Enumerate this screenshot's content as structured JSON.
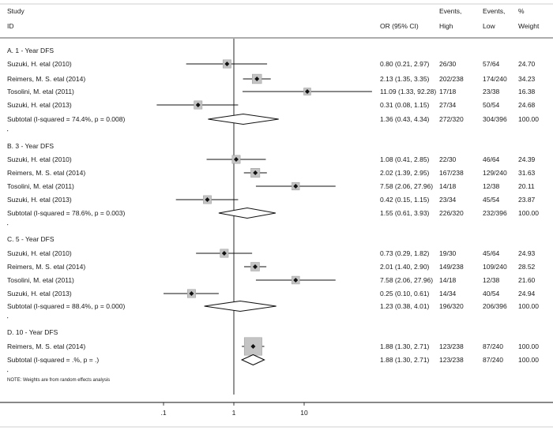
{
  "chart_data": {
    "type": "forest",
    "headers": {
      "study_line1": "Study",
      "study_line2": "ID",
      "or_label": "OR (95% CI)",
      "events_label": "Events,",
      "high_label": "High",
      "low_label": "Low",
      "pct_label": "%",
      "weight_label": "Weight"
    },
    "x_axis": {
      "scale": "log",
      "ticks": [
        0.1,
        1,
        10
      ],
      "tick_labels": [
        ".1",
        "1",
        "10"
      ],
      "range": [
        0.03,
        100
      ]
    },
    "groups": [
      {
        "label": "A. 1 - Year DFS",
        "studies": [
          {
            "name": "Suzuki, H. etal (2010)",
            "or": 0.8,
            "lo": 0.21,
            "hi": 2.97,
            "ci_text": "0.80 (0.21, 2.97)",
            "high": "26/30",
            "low": "57/64",
            "weight": "24.70"
          },
          {
            "name": "Reimers, M. S. etal (2014)",
            "or": 2.13,
            "lo": 1.35,
            "hi": 3.35,
            "ci_text": "2.13 (1.35, 3.35)",
            "high": "202/238",
            "low": "174/240",
            "weight": "34.23"
          },
          {
            "name": "Tosolini, M. etal (2011)",
            "or": 11.09,
            "lo": 1.33,
            "hi": 92.28,
            "ci_text": "11.09 (1.33, 92.28)",
            "high": "17/18",
            "low": "23/38",
            "weight": "16.38"
          },
          {
            "name": "Suzuki, H. etal (2013)",
            "or": 0.31,
            "lo": 0.08,
            "hi": 1.15,
            "ci_text": "0.31 (0.08, 1.15)",
            "high": "27/34",
            "low": "50/54",
            "weight": "24.68"
          }
        ],
        "subtotal": {
          "label": "Subtotal  (I-squared = 74.4%, p = 0.008)",
          "or": 1.36,
          "lo": 0.43,
          "hi": 4.34,
          "ci_text": "1.36 (0.43, 4.34)",
          "high": "272/320",
          "low": "304/396",
          "weight": "100.00"
        }
      },
      {
        "label": "B. 3 - Year DFS",
        "studies": [
          {
            "name": "Suzuki, H. etal (2010)",
            "or": 1.08,
            "lo": 0.41,
            "hi": 2.85,
            "ci_text": "1.08 (0.41, 2.85)",
            "high": "22/30",
            "low": "46/64",
            "weight": "24.39"
          },
          {
            "name": "Reimers, M. S. etal (2014)",
            "or": 2.02,
            "lo": 1.39,
            "hi": 2.95,
            "ci_text": "2.02 (1.39, 2.95)",
            "high": "167/238",
            "low": "129/240",
            "weight": "31.63"
          },
          {
            "name": "Tosolini, M. etal (2011)",
            "or": 7.58,
            "lo": 2.06,
            "hi": 27.96,
            "ci_text": "7.58 (2.06, 27.96)",
            "high": "14/18",
            "low": "12/38",
            "weight": "20.11"
          },
          {
            "name": "Suzuki, H. etal (2013)",
            "or": 0.42,
            "lo": 0.15,
            "hi": 1.15,
            "ci_text": "0.42 (0.15, 1.15)",
            "high": "23/34",
            "low": "45/54",
            "weight": "23.87"
          }
        ],
        "subtotal": {
          "label": "Subtotal  (I-squared = 78.6%, p = 0.003)",
          "or": 1.55,
          "lo": 0.61,
          "hi": 3.93,
          "ci_text": "1.55 (0.61, 3.93)",
          "high": "226/320",
          "low": "232/396",
          "weight": "100.00"
        }
      },
      {
        "label": "C. 5 - Year DFS",
        "studies": [
          {
            "name": "Suzuki, H. etal (2010)",
            "or": 0.73,
            "lo": 0.29,
            "hi": 1.82,
            "ci_text": "0.73 (0.29, 1.82)",
            "high": "19/30",
            "low": "45/64",
            "weight": "24.93"
          },
          {
            "name": "Reimers, M. S. etal (2014)",
            "or": 2.01,
            "lo": 1.4,
            "hi": 2.9,
            "ci_text": "2.01 (1.40, 2.90)",
            "high": "149/238",
            "low": "109/240",
            "weight": "28.52"
          },
          {
            "name": "Tosolini, M. etal (2011)",
            "or": 7.58,
            "lo": 2.06,
            "hi": 27.96,
            "ci_text": "7.58 (2.06, 27.96)",
            "high": "14/18",
            "low": "12/38",
            "weight": "21.60"
          },
          {
            "name": "Suzuki, H. etal (2013)",
            "or": 0.25,
            "lo": 0.1,
            "hi": 0.61,
            "ci_text": "0.25 (0.10, 0.61)",
            "high": "14/34",
            "low": "40/54",
            "weight": "24.94"
          }
        ],
        "subtotal": {
          "label": "Subtotal  (I-squared = 88.4%, p = 0.000)",
          "or": 1.23,
          "lo": 0.38,
          "hi": 4.01,
          "ci_text": "1.23 (0.38, 4.01)",
          "high": "196/320",
          "low": "206/396",
          "weight": "100.00"
        }
      },
      {
        "label": "D. 10 - Year DFS",
        "studies": [
          {
            "name": "Reimers, M. S. etal (2014)",
            "or": 1.88,
            "lo": 1.3,
            "hi": 2.71,
            "ci_text": "1.88 (1.30, 2.71)",
            "high": "123/238",
            "low": "87/240",
            "weight": "100.00"
          }
        ],
        "subtotal": {
          "label": "Subtotal  (I-squared = .%, p = .)",
          "or": 1.88,
          "lo": 1.3,
          "hi": 2.71,
          "ci_text": "1.88 (1.30, 2.71)",
          "high": "123/238",
          "low": "87/240",
          "weight": "100.00"
        }
      }
    ],
    "note": "NOTE: Weights are from random effects analysis"
  }
}
